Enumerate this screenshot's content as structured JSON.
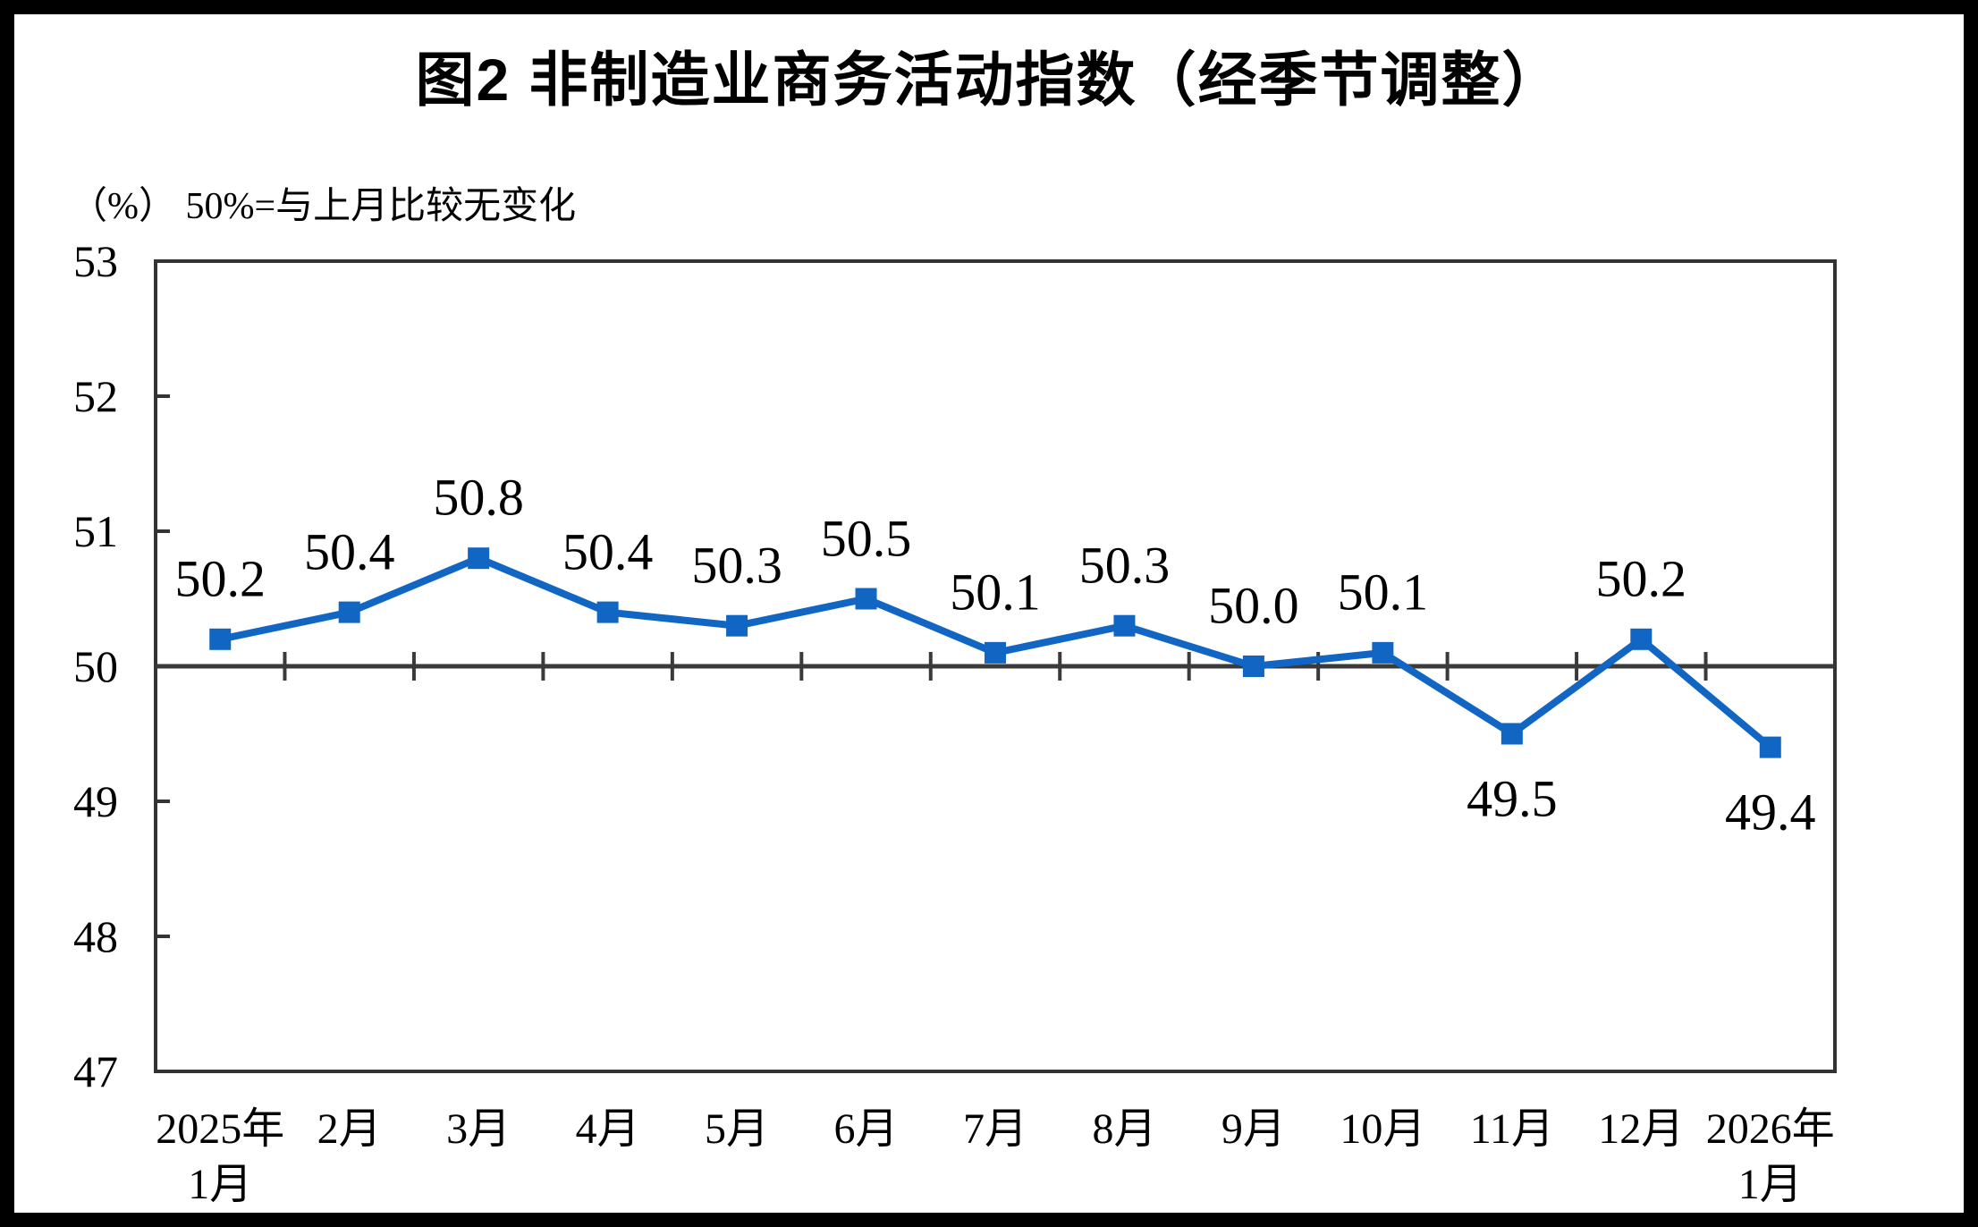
{
  "title": "图2 非制造业商务活动指数（经季节调整）",
  "subtitle": "（%） 50%=与上月比较无变化",
  "chart_data": {
    "type": "line",
    "title": "图2 非制造业商务活动指数（经季节调整）",
    "unit_note": "（%） 50%=与上月比较无变化",
    "categories": [
      [
        "2025年",
        "1月"
      ],
      [
        "2月"
      ],
      [
        "3月"
      ],
      [
        "4月"
      ],
      [
        "5月"
      ],
      [
        "6月"
      ],
      [
        "7月"
      ],
      [
        "8月"
      ],
      [
        "9月"
      ],
      [
        "10月"
      ],
      [
        "11月"
      ],
      [
        "12月"
      ],
      [
        "2026年",
        "1月"
      ]
    ],
    "series": [
      {
        "name": "非制造业商务活动指数（经季节调整）",
        "values": [
          50.2,
          50.4,
          50.8,
          50.4,
          50.3,
          50.5,
          50.1,
          50.3,
          50.0,
          50.1,
          49.5,
          50.2,
          49.4
        ]
      }
    ],
    "data_labels": [
      "50.2",
      "50.4",
      "50.8",
      "50.4",
      "50.3",
      "50.5",
      "50.1",
      "50.3",
      "50.0",
      "50.1",
      "49.5",
      "50.2",
      "49.4"
    ],
    "label_side": [
      "above",
      "above",
      "above",
      "above",
      "above",
      "above",
      "above",
      "above",
      "above",
      "above",
      "below",
      "above",
      "below"
    ],
    "ylim": [
      47,
      53
    ],
    "yticks": [
      47,
      48,
      49,
      50,
      51,
      52,
      53
    ],
    "reference_line": 50,
    "line_color": "#1166C4",
    "axis_color": "#333333",
    "reference_line_color": "#3a3a3a",
    "grid": false,
    "legend": "none"
  }
}
